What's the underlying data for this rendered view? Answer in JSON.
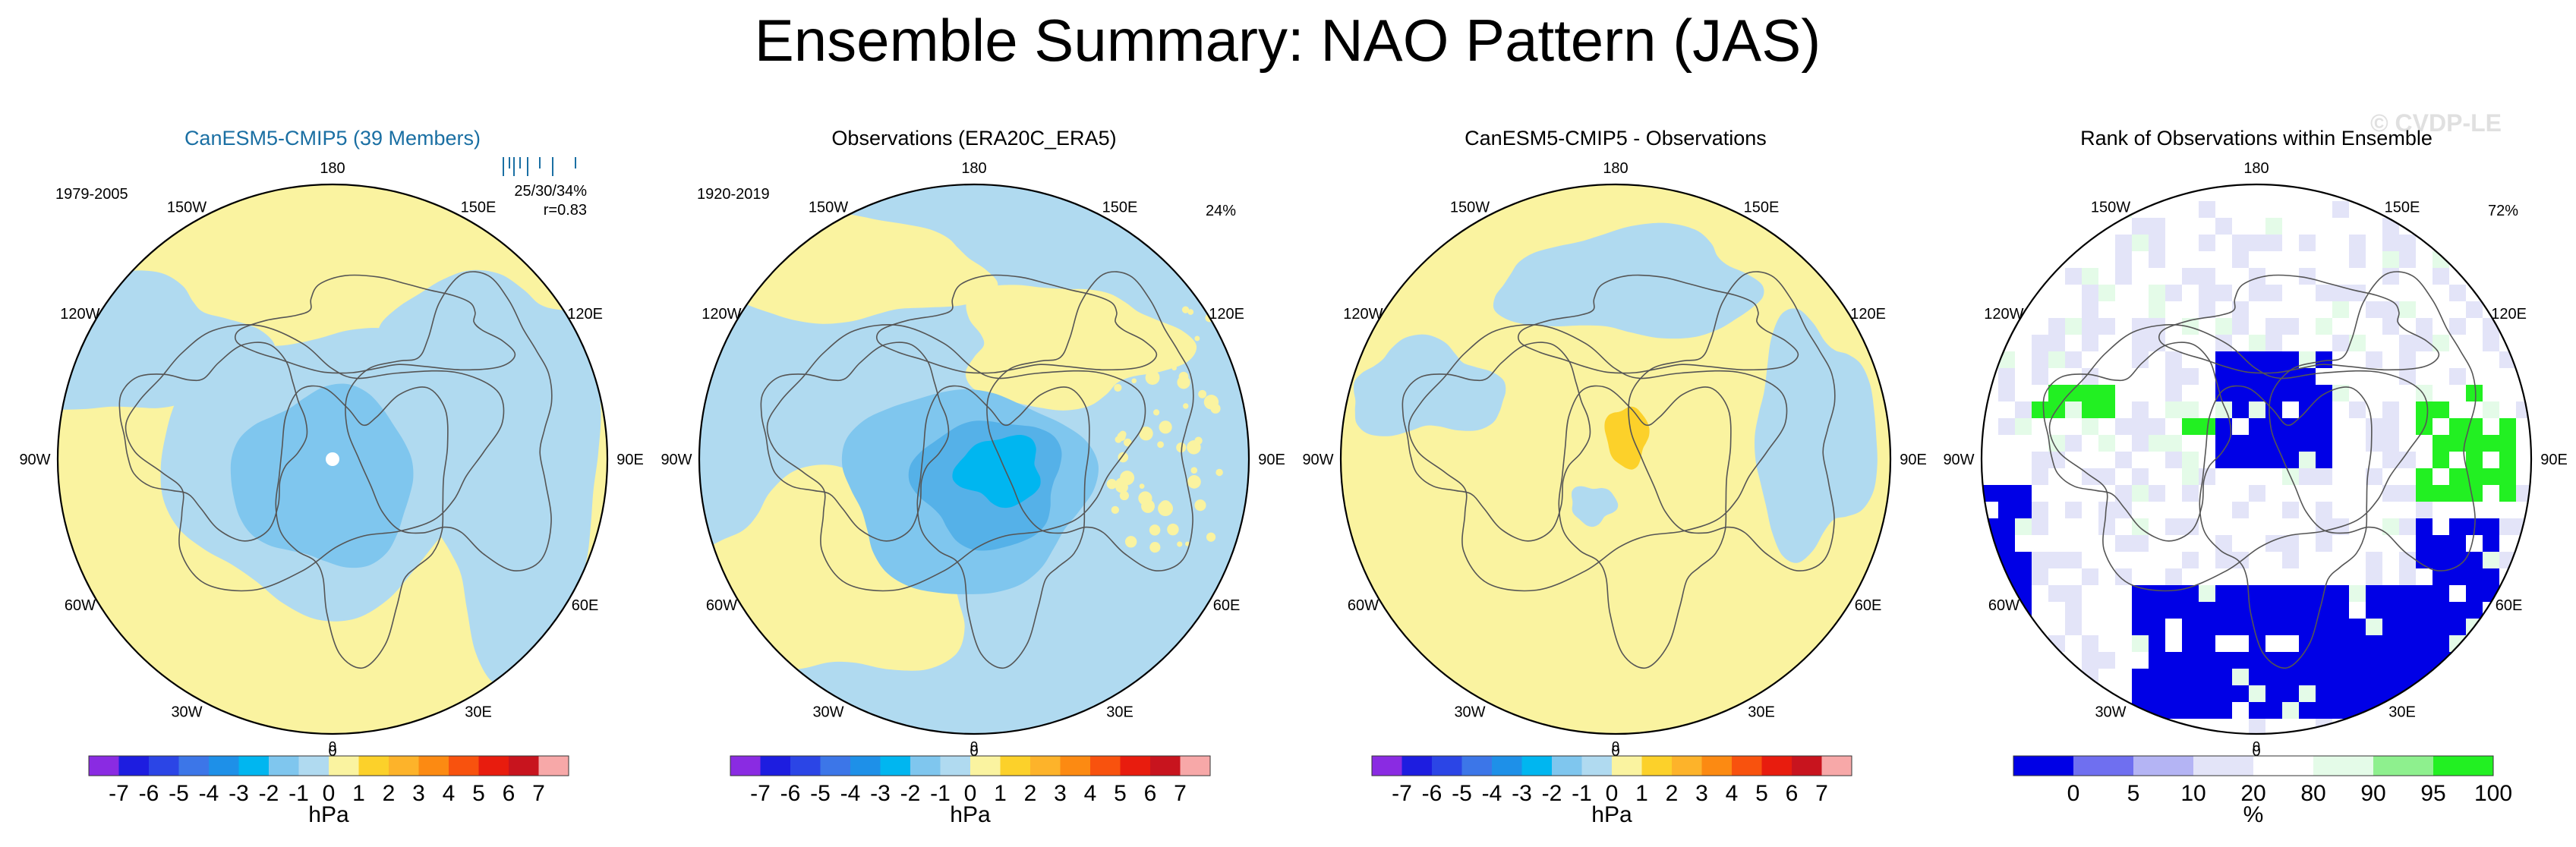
{
  "title": "Ensemble Summary: NAO Pattern (JAS)",
  "watermark": "© CVDP-LE",
  "colors": {
    "ocean_blue": "#b0daf0",
    "mid_blue": "#7fc6ee",
    "dark_blue": "#55b1e8",
    "cyan": "#00b6f0",
    "land_yellow": "#faf3a0",
    "gold": "#fcd12a",
    "rank_blue": "#0000e6",
    "rank_lavender": "#e3e4f8",
    "rank_green": "#22f022",
    "rank_mint": "#e4fbe8"
  },
  "chart_data": [
    {
      "type": "polar-map",
      "title": "CanESM5-CMIP5 (39 Members)",
      "title_color": "#1a6fa3",
      "period": "1979-2005",
      "stats_line": "25/30/34%",
      "corr": "r=0.83",
      "pct": "",
      "longitude_labels": [
        "180",
        "150E",
        "120E",
        "90E",
        "60E",
        "30E",
        "0",
        "30W",
        "60W",
        "90W",
        "120W",
        "150W"
      ],
      "colorbar": {
        "unit": "hPa",
        "labels": [
          "-7",
          "-6",
          "-5",
          "-4",
          "-3",
          "-2",
          "-1",
          "0",
          "1",
          "2",
          "3",
          "4",
          "5",
          "6",
          "7"
        ],
        "colors": [
          "#8a2be2",
          "#1d1de0",
          "#2b45e6",
          "#3c76e8",
          "#1e90e8",
          "#00b6f0",
          "#7fc6ee",
          "#b0daf0",
          "#faf3a0",
          "#fcd12a",
          "#fdb32a",
          "#fc8a12",
          "#f8520e",
          "#e81c0e",
          "#c8141e",
          "#f7a8a8"
        ]
      }
    },
    {
      "type": "polar-map",
      "title": "Observations (ERA20C_ERA5)",
      "title_color": "#000000",
      "period": "1920-2019",
      "stats_line": "",
      "corr": "",
      "pct": "24%",
      "longitude_labels": [
        "180",
        "150E",
        "120E",
        "90E",
        "60E",
        "30E",
        "0",
        "30W",
        "60W",
        "90W",
        "120W",
        "150W"
      ],
      "colorbar": {
        "unit": "hPa",
        "labels": [
          "-7",
          "-6",
          "-5",
          "-4",
          "-3",
          "-2",
          "-1",
          "0",
          "1",
          "2",
          "3",
          "4",
          "5",
          "6",
          "7"
        ],
        "colors": [
          "#8a2be2",
          "#1d1de0",
          "#2b45e6",
          "#3c76e8",
          "#1e90e8",
          "#00b6f0",
          "#7fc6ee",
          "#b0daf0",
          "#faf3a0",
          "#fcd12a",
          "#fdb32a",
          "#fc8a12",
          "#f8520e",
          "#e81c0e",
          "#c8141e",
          "#f7a8a8"
        ]
      }
    },
    {
      "type": "polar-map",
      "title": "CanESM5-CMIP5 - Observations",
      "title_color": "#000000",
      "period": "",
      "stats_line": "",
      "corr": "",
      "pct": "",
      "longitude_labels": [
        "180",
        "150E",
        "120E",
        "90E",
        "60E",
        "30E",
        "0",
        "30W",
        "60W",
        "90W",
        "120W",
        "150W"
      ],
      "colorbar": {
        "unit": "hPa",
        "labels": [
          "-7",
          "-6",
          "-5",
          "-4",
          "-3",
          "-2",
          "-1",
          "0",
          "1",
          "2",
          "3",
          "4",
          "5",
          "6",
          "7"
        ],
        "colors": [
          "#8a2be2",
          "#1d1de0",
          "#2b45e6",
          "#3c76e8",
          "#1e90e8",
          "#00b6f0",
          "#7fc6ee",
          "#b0daf0",
          "#faf3a0",
          "#fcd12a",
          "#fdb32a",
          "#fc8a12",
          "#f8520e",
          "#e81c0e",
          "#c8141e",
          "#f7a8a8"
        ]
      }
    },
    {
      "type": "polar-map",
      "title": "Rank of Observations within Ensemble",
      "title_color": "#000000",
      "period": "",
      "stats_line": "",
      "corr": "",
      "pct": "72%",
      "longitude_labels": [
        "180",
        "150E",
        "120E",
        "90E",
        "60E",
        "30E",
        "0",
        "30W",
        "60W",
        "90W",
        "120W",
        "150W"
      ],
      "colorbar": {
        "unit": "%",
        "labels": [
          "0",
          "5",
          "10",
          "20",
          "80",
          "90",
          "95",
          "100"
        ],
        "colors": [
          "#0000e6",
          "#6f6ff0",
          "#b4b4f4",
          "#e3e4f8",
          "#ffffff",
          "#e4fbe8",
          "#8ef08e",
          "#22f022"
        ]
      }
    }
  ]
}
